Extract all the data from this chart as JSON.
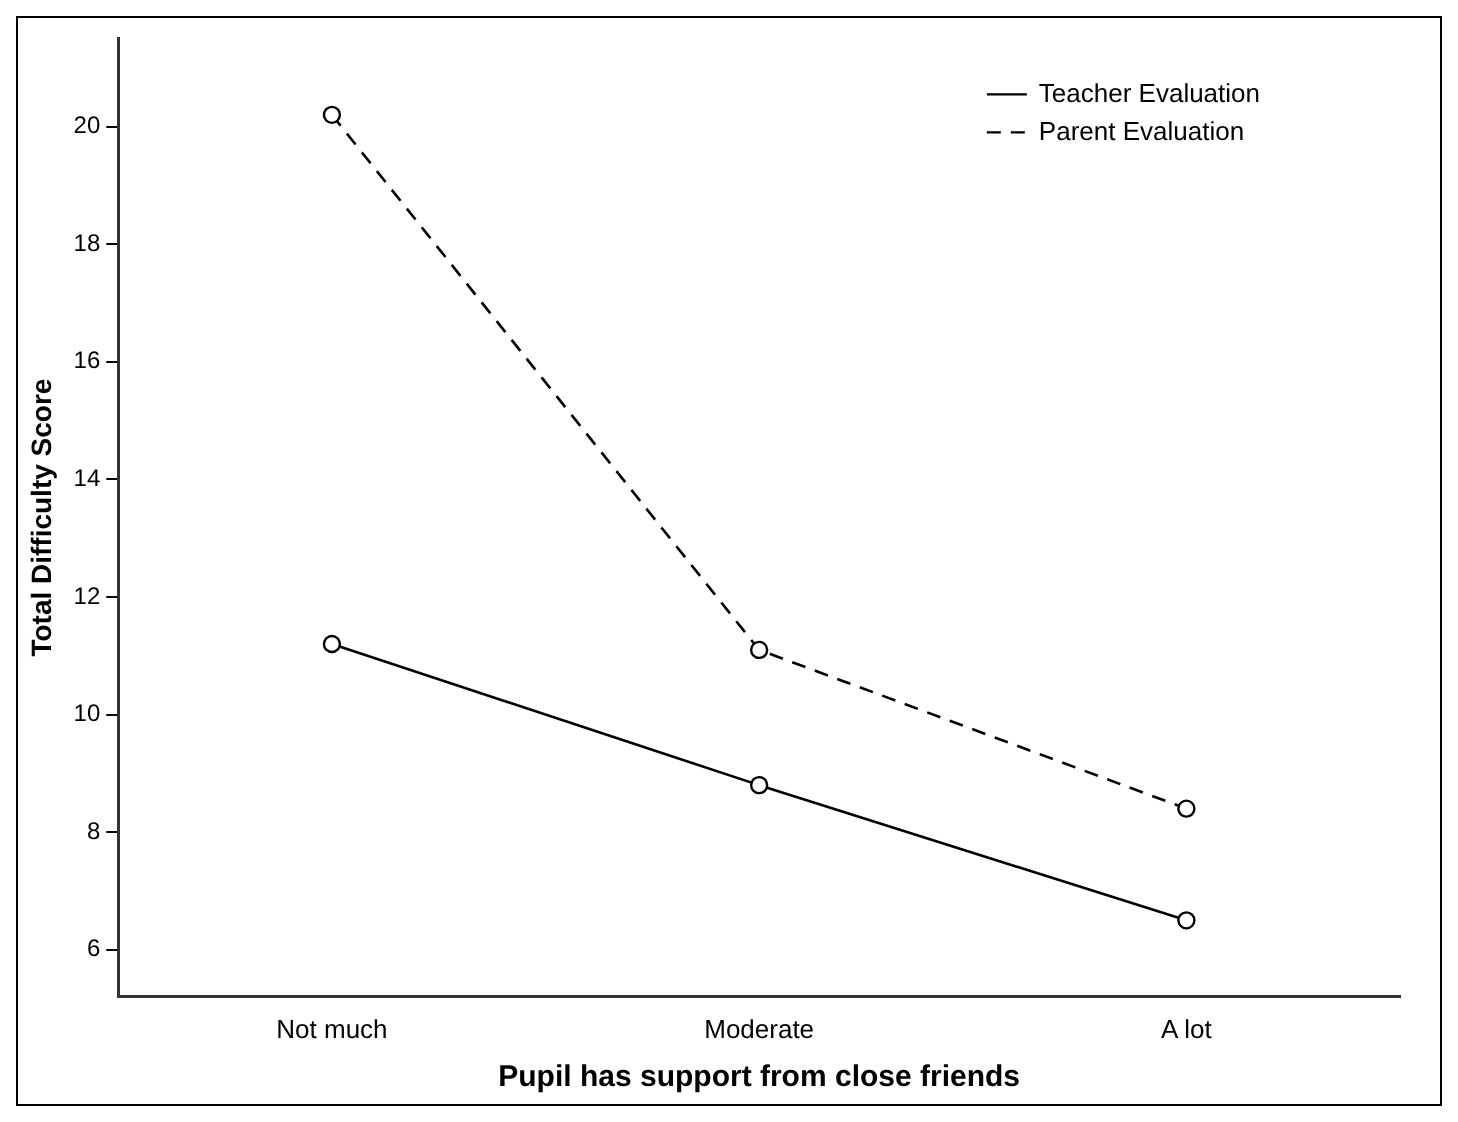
{
  "chart_data": {
    "type": "line",
    "xlabel": "Pupil has support from close friends",
    "ylabel": "Total Difficulty Score",
    "categories": [
      "Not much",
      "Moderate",
      "A lot"
    ],
    "series": [
      {
        "name": "Teacher Evaluation",
        "color": "#000000",
        "values": [
          11.2,
          8.8,
          6.5
        ],
        "line_style": "solid"
      },
      {
        "name": "Parent Evaluation",
        "color": "#000000",
        "values": [
          20.2,
          11.1,
          8.4
        ],
        "line_style": "dashed"
      }
    ],
    "ylim": [
      5.2,
      21.5
    ],
    "yticks": [
      6,
      8,
      10,
      12,
      14,
      16,
      18,
      20
    ],
    "grid": false,
    "legend": "top right",
    "marker": "circle"
  }
}
